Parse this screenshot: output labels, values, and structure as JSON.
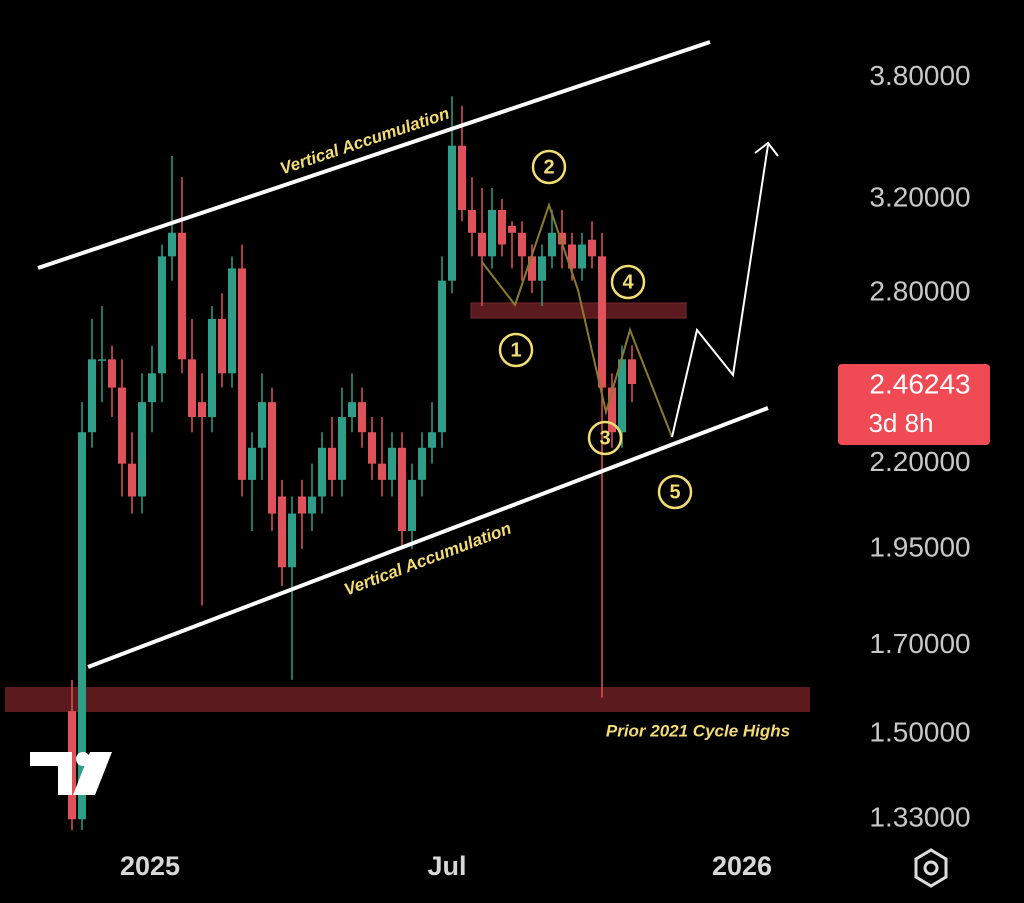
{
  "chart_data": {
    "type": "candlestick",
    "x": [
      0,
      1,
      2,
      3,
      4,
      5,
      6,
      7,
      8,
      9,
      10,
      11,
      12,
      13,
      14,
      15,
      16,
      17,
      18,
      19,
      20,
      21,
      22,
      23,
      24,
      25,
      26,
      27,
      28,
      29,
      30,
      31,
      32,
      33,
      34,
      35,
      36,
      37,
      38,
      39,
      40,
      41,
      42,
      43,
      44,
      45,
      46,
      47,
      48,
      49,
      50,
      51,
      52,
      53,
      54,
      55,
      56
    ],
    "open": [
      1.55,
      1.33,
      2.3,
      2.55,
      2.55,
      2.45,
      2.2,
      2.1,
      2.4,
      2.5,
      2.95,
      3.05,
      2.55,
      2.4,
      2.35,
      2.7,
      2.5,
      2.9,
      2.15,
      2.25,
      2.4,
      2.1,
      1.9,
      2.1,
      2.05,
      2.1,
      2.25,
      2.15,
      2.35,
      2.4,
      2.3,
      2.2,
      2.15,
      2.25,
      2.0,
      2.15,
      2.25,
      2.3,
      2.85,
      3.45,
      3.15,
      3.05,
      2.95,
      3.15,
      3.08,
      3.05,
      2.95,
      2.85,
      2.95,
      3.05,
      3.0,
      2.9,
      3.02,
      2.95,
      2.45,
      2.3,
      2.55
    ],
    "high": [
      1.62,
      2.4,
      2.7,
      2.75,
      2.6,
      2.55,
      2.3,
      2.5,
      2.6,
      3.0,
      3.4,
      3.3,
      2.7,
      2.5,
      2.75,
      2.8,
      2.95,
      3.0,
      2.3,
      2.5,
      2.45,
      2.15,
      2.1,
      2.15,
      2.2,
      2.3,
      2.35,
      2.45,
      2.5,
      2.45,
      2.35,
      2.35,
      2.3,
      2.3,
      2.2,
      2.3,
      2.4,
      2.95,
      3.7,
      3.65,
      3.3,
      3.25,
      3.25,
      3.2,
      3.1,
      3.1,
      3.0,
      3.0,
      3.15,
      3.15,
      3.05,
      3.05,
      3.1,
      3.05,
      2.5,
      2.6,
      2.6
    ],
    "low": [
      1.31,
      1.31,
      2.25,
      2.4,
      2.35,
      2.1,
      2.05,
      2.05,
      2.3,
      2.4,
      2.85,
      2.5,
      2.3,
      1.8,
      2.3,
      2.45,
      2.45,
      2.1,
      2.0,
      2.15,
      2.0,
      1.85,
      1.62,
      1.95,
      2.0,
      2.05,
      2.1,
      2.1,
      2.3,
      2.25,
      2.15,
      2.1,
      2.1,
      1.95,
      1.95,
      2.1,
      2.2,
      2.25,
      2.8,
      3.1,
      2.95,
      2.75,
      2.9,
      2.95,
      2.9,
      2.85,
      2.8,
      2.75,
      2.9,
      2.9,
      2.85,
      2.85,
      2.9,
      1.58,
      2.25,
      2.25,
      2.4
    ],
    "close": [
      1.33,
      2.3,
      2.55,
      2.55,
      2.45,
      2.2,
      2.1,
      2.4,
      2.5,
      2.95,
      3.05,
      2.55,
      2.35,
      2.35,
      2.7,
      2.5,
      2.9,
      2.15,
      2.25,
      2.4,
      2.05,
      1.9,
      2.05,
      2.05,
      2.1,
      2.25,
      2.15,
      2.35,
      2.4,
      2.3,
      2.2,
      2.15,
      2.25,
      2.0,
      2.15,
      2.25,
      2.3,
      2.85,
      3.45,
      3.15,
      3.05,
      2.95,
      3.15,
      3.0,
      3.05,
      2.95,
      2.85,
      2.95,
      3.05,
      3.0,
      2.9,
      3.0,
      2.95,
      2.45,
      2.3,
      2.55,
      2.46243
    ],
    "up_color": "#2f9e89",
    "down_color": "#e0525b",
    "log_scale": true,
    "ylim": [
      1.31,
      4.24
    ],
    "yticks": [
      {
        "value": 1.33,
        "label": "1.33000"
      },
      {
        "value": 1.5,
        "label": "1.50000"
      },
      {
        "value": 1.7,
        "label": "1.70000"
      },
      {
        "value": 1.95,
        "label": "1.95000"
      },
      {
        "value": 2.2,
        "label": "2.20000"
      },
      {
        "value": 2.8,
        "label": "2.80000"
      },
      {
        "value": 3.2,
        "label": "3.20000"
      },
      {
        "value": 3.8,
        "label": "3.80000"
      }
    ],
    "xlim": [
      -7.2,
      76.8
    ],
    "xticks": [
      {
        "value": 7.8,
        "label": "2025"
      },
      {
        "value": 37.5,
        "label": "Jul"
      },
      {
        "value": 67,
        "label": "2026"
      }
    ],
    "last_price": 2.46243,
    "countdown": "3d 8h",
    "annotations": [
      "Vertical Accumulation",
      "Vertical Accumulation",
      "Prior 2021 Cycle Highs"
    ],
    "wave_labels": [
      "1",
      "2",
      "3",
      "4",
      "5"
    ]
  }
}
